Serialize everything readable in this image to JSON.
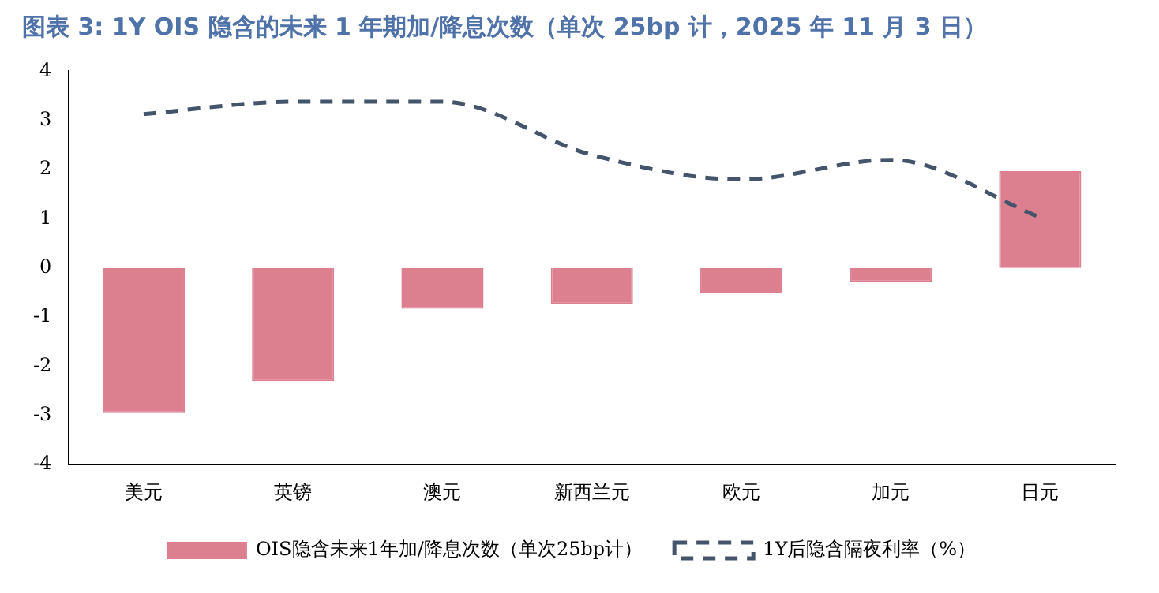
{
  "chart_data": {
    "type": "bar",
    "title": "图表 3:  1Y OIS 隐含的未来 1 年期加/降息次数（单次 25bp 计，2025 年 11 月 3 日）",
    "categories": [
      "美元",
      "英镑",
      "澳元",
      "新西兰元",
      "欧元",
      "加元",
      "日元"
    ],
    "series": [
      {
        "name": "OIS隐含未来1年加/降息次数（单次25bp计）",
        "color": "#dc7f8f",
        "values": [
          -2.95,
          -2.3,
          -0.83,
          -0.73,
          -0.5,
          -0.28,
          1.97
        ]
      },
      {
        "name": "1Y后隐含隔夜利率（%）",
        "type": "line",
        "color": "#44546a",
        "line_style": "dashed",
        "values": [
          3.13,
          3.38,
          3.38,
          2.3,
          1.8,
          2.2,
          1.03
        ]
      }
    ],
    "ylim": [
      -4,
      4
    ],
    "yticks": [
      -4,
      -3,
      -2,
      -1,
      0,
      1,
      2,
      3,
      4
    ],
    "grid": false,
    "legend": "bottom",
    "marker": "none"
  }
}
